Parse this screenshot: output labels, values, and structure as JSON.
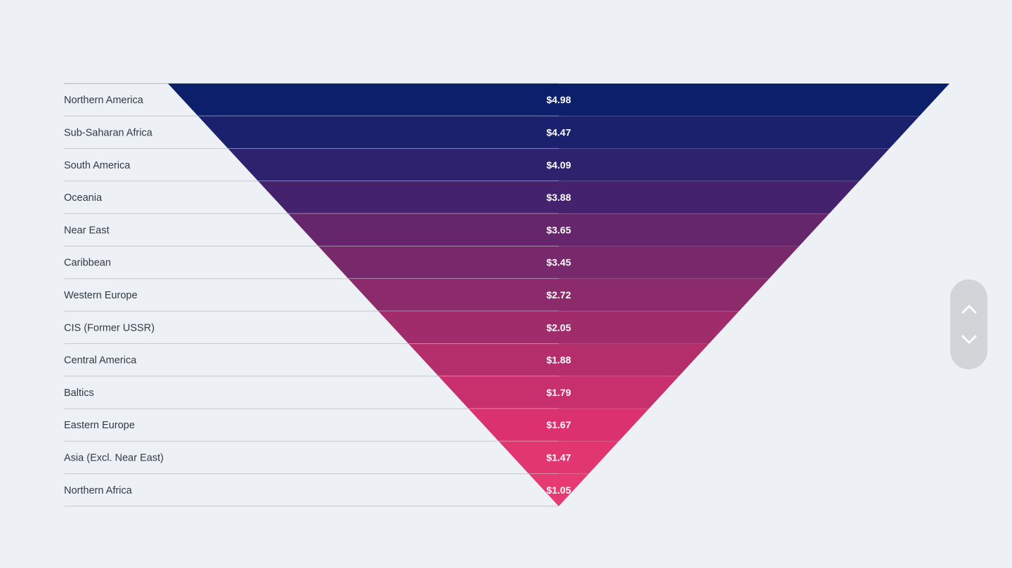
{
  "chart_data": {
    "type": "funnel",
    "title": "",
    "categories": [
      "Northern America",
      "Sub-Saharan Africa",
      "South America",
      "Oceania",
      "Near East",
      "Caribbean",
      "Western Europe",
      "CIS (Former USSR)",
      "Central America",
      "Baltics",
      "Eastern Europe",
      "Asia (Excl. Near East)",
      "Northern Africa"
    ],
    "value_labels": [
      "$4.98",
      "$4.47",
      "$4.09",
      "$3.88",
      "$3.65",
      "$3.45",
      "$2.72",
      "$2.05",
      "$1.88",
      "$1.79",
      "$1.67",
      "$1.47",
      "$1.05"
    ],
    "values": [
      4.98,
      4.47,
      4.09,
      3.88,
      3.65,
      3.45,
      2.72,
      2.05,
      1.88,
      1.79,
      1.67,
      1.47,
      1.05
    ],
    "colors": [
      "#0b1f6b",
      "#1c216e",
      "#2e226f",
      "#44226e",
      "#66266b",
      "#77296c",
      "#8b2b6b",
      "#a02c6b",
      "#b32e6b",
      "#c7306d",
      "#db316f",
      "#e23670",
      "#e63a72"
    ],
    "row_border_color": "#c4c8cc"
  },
  "navigation": {
    "up_icon": "chevron-up-icon",
    "down_icon": "chevron-down-icon"
  }
}
